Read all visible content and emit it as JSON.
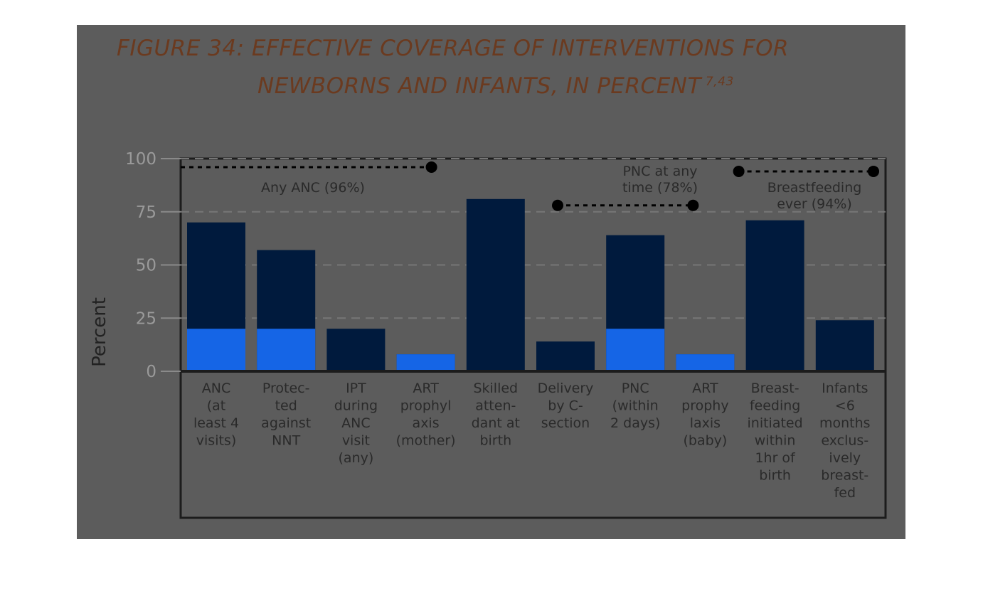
{
  "figure": {
    "title_line1": "FIGURE 34: EFFECTIVE COVERAGE OF INTERVENTIONS FOR",
    "title_line2": "NEWBORNS AND INFANTS, IN PERCENT",
    "title_superscript": "7,43"
  },
  "colors": {
    "panel": "#5c5c5c",
    "bar": "#001a3d",
    "bar_highlight": "#1565e6",
    "title": "#6b3a1f"
  },
  "chart_data": {
    "type": "bar",
    "ylabel": "Percent",
    "ylim": [
      0,
      100
    ],
    "yticks": [
      0,
      25,
      50,
      75,
      100
    ],
    "grid": "horizontal dashed",
    "categories": [
      [
        "ANC",
        "(at",
        "least 4",
        "visits)"
      ],
      [
        "Protec-",
        "ted",
        "against",
        "NNT"
      ],
      [
        "IPT",
        "during",
        "ANC",
        "visit",
        "(any)"
      ],
      [
        "ART",
        "prophyl",
        "axis",
        "(mother)"
      ],
      [
        "Skilled",
        "atten-",
        "dant at",
        "birth"
      ],
      [
        "Delivery",
        "by C-",
        "section"
      ],
      [
        "PNC",
        "(within",
        "2 days)"
      ],
      [
        "ART",
        "prophy",
        "laxis",
        "(baby)"
      ],
      [
        "Breast-",
        "feeding",
        "initiated",
        "within",
        "1hr of",
        "birth"
      ],
      [
        "Infants",
        "<6",
        "months",
        "exclus-",
        "ively",
        "breast-",
        "fed"
      ]
    ],
    "values": [
      70,
      57,
      20,
      8,
      81,
      14,
      64,
      8,
      71,
      24
    ],
    "annotations": [
      {
        "label": [
          "Any ANC (96%)"
        ],
        "value": 96,
        "from_bar": 0,
        "to_bar": 3
      },
      {
        "label": [
          "PNC at any",
          "time (78%)"
        ],
        "value": 78,
        "from_bar": 5,
        "to_bar": 7
      },
      {
        "label": [
          "Breastfeeding",
          "ever (94%)"
        ],
        "value": 94,
        "from_bar": 8,
        "to_bar": 9
      }
    ]
  }
}
